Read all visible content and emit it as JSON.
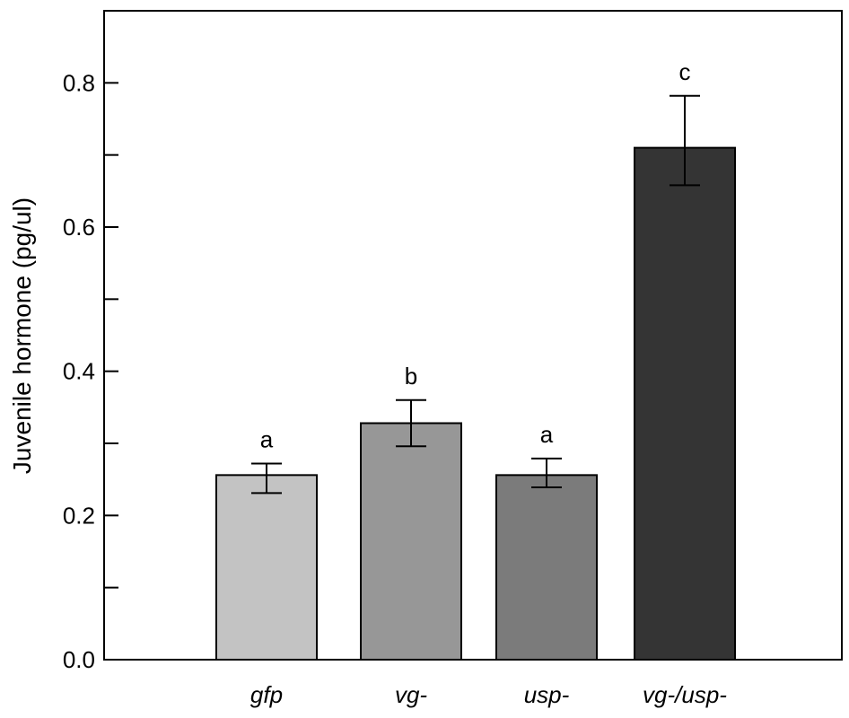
{
  "chart_data": {
    "type": "bar",
    "title": "",
    "xlabel": "",
    "ylabel": "Juvenile hormone (pg/ul)",
    "ylim": [
      0,
      0.9
    ],
    "y_major_ticks": [
      0.0,
      0.2,
      0.4,
      0.6,
      0.8
    ],
    "y_tick_labels": [
      "0.0",
      "0.2",
      "0.4",
      "0.6",
      "0.8"
    ],
    "y_minor_ticks": [
      0.1,
      0.3,
      0.5,
      0.7
    ],
    "categories": [
      "gfp",
      "vg-",
      "usp-",
      "vg-/usp-"
    ],
    "values": [
      0.256,
      0.328,
      0.256,
      0.71
    ],
    "error_low": [
      0.231,
      0.296,
      0.239,
      0.658
    ],
    "error_high": [
      0.272,
      0.36,
      0.279,
      0.782
    ],
    "significance_letters": [
      "a",
      "b",
      "a",
      "c"
    ],
    "bar_colors": [
      "#c3c3c3",
      "#979797",
      "#7b7b7b",
      "#343434"
    ],
    "grid": false,
    "legend": "none"
  }
}
